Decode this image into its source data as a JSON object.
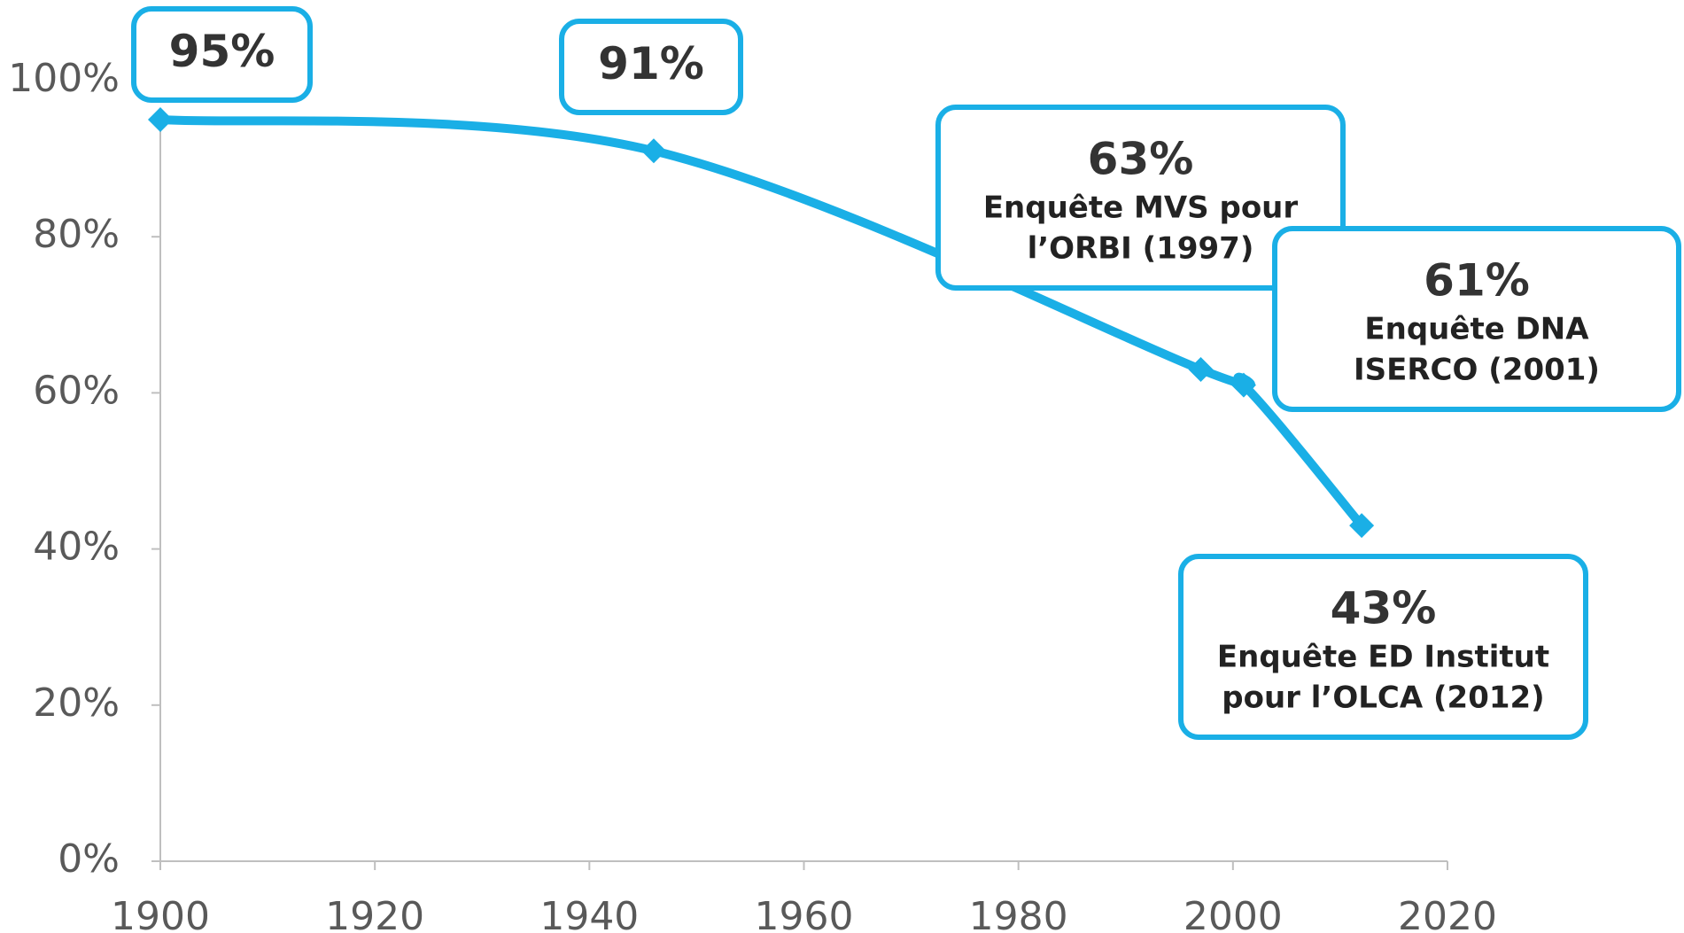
{
  "chart_data": {
    "type": "line",
    "x": [
      1900,
      1946,
      1997,
      2001,
      2012
    ],
    "series": [
      {
        "color": "#1aafe6",
        "values": [
          95,
          91,
          63,
          61,
          43
        ],
        "value_labels": [
          "95%",
          "91%",
          "63%",
          "61%",
          "43%"
        ],
        "notes": [
          null,
          null,
          [
            "Enquête MVS pour",
            "l’ORBI (1997)"
          ],
          [
            "Enquête DNA",
            "ISERCO (2001)"
          ],
          [
            "Enquête ED Institut",
            "pour l’OLCA (2012)"
          ]
        ]
      }
    ],
    "xlim": [
      1900,
      2020
    ],
    "xticks": [
      1900,
      1920,
      1940,
      1960,
      1980,
      2000,
      2020
    ],
    "ylim": [
      0,
      100
    ],
    "yticks": [
      {
        "value": 0,
        "label": "0%"
      },
      {
        "value": 20,
        "label": "20%"
      },
      {
        "value": 40,
        "label": "40%"
      },
      {
        "value": 60,
        "label": "60%"
      },
      {
        "value": 80,
        "label": "80%"
      },
      {
        "value": 100,
        "label": "100%"
      }
    ]
  }
}
